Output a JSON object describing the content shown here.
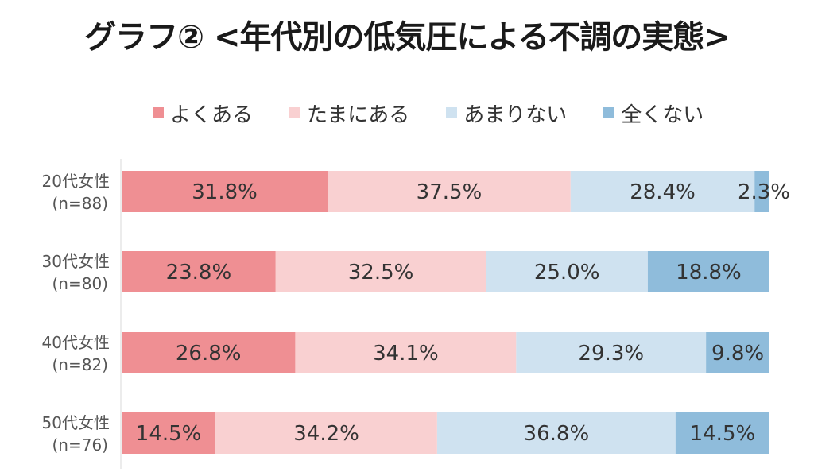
{
  "title": "グラフ② <年代別の低気圧による不調の実態>",
  "chart_data": {
    "type": "bar",
    "orientation": "horizontal",
    "stacked": true,
    "normalized": true,
    "title": "グラフ② <年代別の低気圧による不調の実態>",
    "legend_position": "top",
    "categories": [
      {
        "name": "20代女性",
        "n": "(n=88)"
      },
      {
        "name": "30代女性",
        "n": "(n=80)"
      },
      {
        "name": "40代女性",
        "n": "(n=82)"
      },
      {
        "name": "50代女性",
        "n": "(n=76)"
      }
    ],
    "series": [
      {
        "name": "よくある",
        "color": "#ef8f93",
        "values": [
          31.8,
          23.8,
          26.8,
          14.5
        ],
        "labels": [
          "31.8%",
          "23.8%",
          "26.8%",
          "14.5%"
        ]
      },
      {
        "name": "たまにある",
        "color": "#f9d0d1",
        "values": [
          37.5,
          32.5,
          34.1,
          34.2
        ],
        "labels": [
          "37.5%",
          "32.5%",
          "34.1%",
          "34.2%"
        ]
      },
      {
        "name": "あまりない",
        "color": "#cfe2f0",
        "values": [
          28.4,
          25.0,
          29.3,
          36.8
        ],
        "labels": [
          "28.4%",
          "25.0%",
          "29.3%",
          "36.8%"
        ]
      },
      {
        "name": "全くない",
        "color": "#8fbcdb",
        "values": [
          2.3,
          18.8,
          9.8,
          14.5
        ],
        "labels": [
          "2.3%",
          "18.8%",
          "9.8%",
          "14.5%"
        ]
      }
    ]
  }
}
